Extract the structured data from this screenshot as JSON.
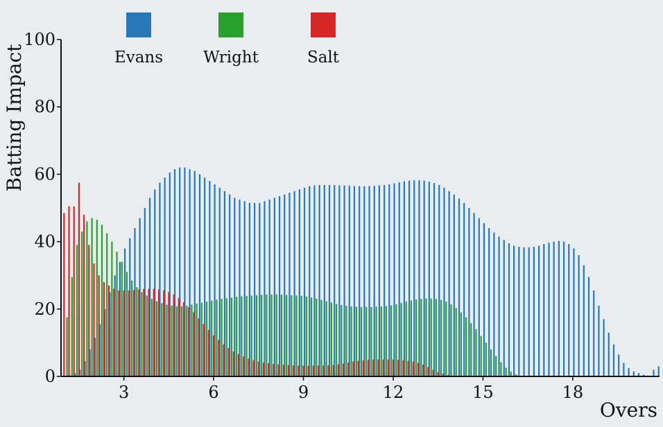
{
  "chart_data": {
    "type": "bar",
    "title": "",
    "xlabel": "Overs",
    "ylabel": "Batting Impact",
    "xlim": [
      0.9,
      20.9
    ],
    "ylim": [
      0,
      100
    ],
    "x_ticks": [
      3,
      6,
      9,
      12,
      15,
      18
    ],
    "y_ticks": [
      0,
      20,
      40,
      60,
      80,
      100
    ],
    "legend_position": "top-left",
    "step": 0.1667,
    "series": [
      {
        "name": "Evans",
        "color": "#2878b8",
        "x_start": 1.2,
        "values": [
          0.3,
          1,
          2,
          4.5,
          8,
          11.5,
          15.5,
          20,
          25,
          30,
          34,
          38,
          41,
          44,
          47,
          50,
          53,
          55.5,
          57.5,
          59,
          60.5,
          61.5,
          62,
          62,
          61.5,
          61,
          60,
          59,
          58,
          57,
          56,
          55,
          54,
          53,
          52.5,
          52,
          51.5,
          51.5,
          51.5,
          52,
          52.5,
          53,
          53.5,
          54,
          54.5,
          55,
          55.5,
          56,
          56.5,
          56.7,
          56.8,
          56.8,
          56.8,
          56.8,
          56.7,
          56.7,
          56.6,
          56.5,
          56.5,
          56.5,
          56.5,
          56.6,
          56.7,
          56.8,
          57,
          57.3,
          57.6,
          57.9,
          58.1,
          58.2,
          58.2,
          58.1,
          57.8,
          57.4,
          56.8,
          56,
          55,
          54,
          52.8,
          51.5,
          50,
          48.5,
          47,
          45.5,
          44,
          42.7,
          41.5,
          40.5,
          39.5,
          38.8,
          38.5,
          38.3,
          38.3,
          38.5,
          38.8,
          39.3,
          39.7,
          40,
          40.2,
          40,
          39.3,
          38,
          36,
          33,
          29.5,
          25.5,
          21,
          17,
          13,
          9.5,
          6.5,
          4,
          2.5,
          1.5,
          1,
          0.5,
          0,
          2,
          3,
          2,
          1,
          3,
          8.5
        ]
      },
      {
        "name": "Wright",
        "color": "#2ca02c",
        "x_start": 1.1,
        "values": [
          17.5,
          29.5,
          39,
          43,
          46,
          47,
          46.5,
          45,
          42.5,
          40,
          37,
          34,
          31,
          28.5,
          26.5,
          25,
          24,
          23,
          22.3,
          21.7,
          21.3,
          21,
          20.8,
          20.8,
          21,
          21.3,
          21.6,
          21.9,
          22.2,
          22.5,
          22.8,
          23,
          23.2,
          23.4,
          23.6,
          23.8,
          23.9,
          24,
          24.1,
          24.2,
          24.3,
          24.3,
          24.3,
          24.3,
          24.2,
          24.1,
          24,
          23.9,
          23.7,
          23.4,
          23.1,
          22.7,
          22.3,
          21.9,
          21.5,
          21.2,
          21,
          20.8,
          20.7,
          20.6,
          20.6,
          20.6,
          20.7,
          20.8,
          20.9,
          21.1,
          21.4,
          21.8,
          22.2,
          22.5,
          22.8,
          23,
          23.1,
          23.1,
          23,
          22.7,
          22.2,
          21.4,
          20.3,
          19,
          17.5,
          15.8,
          14,
          12,
          10,
          8,
          6,
          4.2,
          2.6,
          1.4,
          0.6,
          0.2
        ]
      },
      {
        "name": "Salt",
        "color": "#d62728",
        "x_start": 1.0,
        "values": [
          48.5,
          50.5,
          50.5,
          57.5,
          48,
          39,
          33.5,
          30,
          28,
          27,
          26,
          25.5,
          25.5,
          25.5,
          25.6,
          25.8,
          26,
          26,
          26,
          25.8,
          25.5,
          25,
          24.3,
          23.3,
          22,
          20.5,
          19,
          17.2,
          15.5,
          13.8,
          12.2,
          10.8,
          9.5,
          8.4,
          7.4,
          6.6,
          5.9,
          5.3,
          4.8,
          4.4,
          4.1,
          3.9,
          3.7,
          3.6,
          3.5,
          3.4,
          3.3,
          3.2,
          3.2,
          3.2,
          3.2,
          3.2,
          3.2,
          3.3,
          3.4,
          3.6,
          3.8,
          4.1,
          4.4,
          4.6,
          4.8,
          4.9,
          5,
          5,
          5,
          5,
          5,
          4.9,
          4.8,
          4.6,
          4.4,
          4,
          3.5,
          2.8,
          2,
          1.3,
          0.8,
          0.4
        ]
      }
    ]
  }
}
